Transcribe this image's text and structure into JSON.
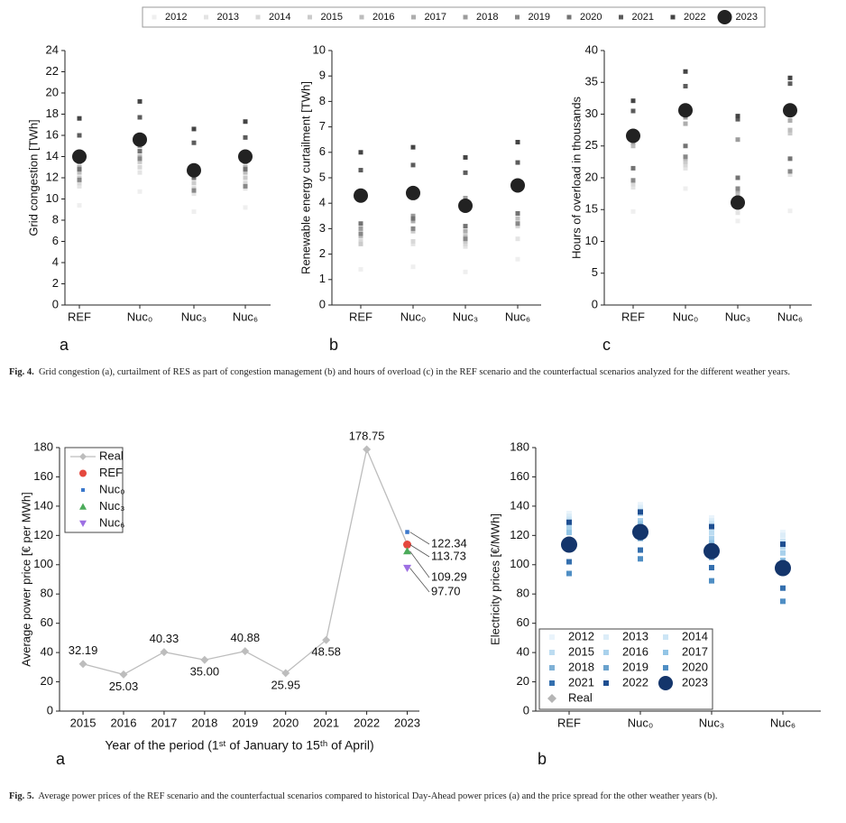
{
  "fig4_caption": {
    "label": "Fig. 4.",
    "text": "Grid congestion (a), curtailment of RES as part of congestion management (b) and hours of overload (c) in the REF scenario and the counterfactual scenarios analyzed for the different weather years."
  },
  "fig5_caption": {
    "label": "Fig. 5.",
    "text": "Average power prices of the REF scenario and the counterfactual scenarios compared to historical Day-Ahead power prices (a) and the price spread for the other weather years (b)."
  },
  "chart_data": [
    {
      "type": "scatter",
      "panel_label": "a",
      "ylabel": "Grid congestion [TWh]",
      "categories": [
        "REF",
        "Nuc₀",
        "Nuc₃",
        "Nuc₆"
      ],
      "ylim": [
        0,
        24
      ],
      "yticks": [
        0,
        2,
        4,
        6,
        8,
        10,
        12,
        14,
        16,
        18,
        20,
        22,
        24
      ],
      "legend_position": "top",
      "series": [
        {
          "name": "2012",
          "color": "#efefef",
          "marker": "square",
          "values": [
            9.4,
            10.7,
            8.8,
            9.2
          ]
        },
        {
          "name": "2013",
          "color": "#e4e4e4",
          "marker": "square",
          "values": [
            11.2,
            12.5,
            10.5,
            11.0
          ]
        },
        {
          "name": "2014",
          "color": "#d8d8d8",
          "marker": "square",
          "values": [
            11.5,
            13.0,
            11.0,
            11.5
          ]
        },
        {
          "name": "2015",
          "color": "#cbcbcb",
          "marker": "square",
          "values": [
            12.0,
            13.5,
            11.5,
            12.0
          ]
        },
        {
          "name": "2016",
          "color": "#bdbdbd",
          "marker": "square",
          "values": [
            12.5,
            14.0,
            12.0,
            12.5
          ]
        },
        {
          "name": "2017",
          "color": "#adadad",
          "marker": "square",
          "values": [
            13.0,
            14.5,
            12.5,
            13.0
          ]
        },
        {
          "name": "2018",
          "color": "#9c9c9c",
          "marker": "square",
          "values": [
            13.5,
            15.0,
            13.0,
            13.5
          ]
        },
        {
          "name": "2019",
          "color": "#888888",
          "marker": "square",
          "values": [
            11.8,
            13.8,
            10.8,
            11.2
          ]
        },
        {
          "name": "2020",
          "color": "#737373",
          "marker": "square",
          "values": [
            12.8,
            14.5,
            12.0,
            12.8
          ]
        },
        {
          "name": "2021",
          "color": "#5c5c5c",
          "marker": "square",
          "values": [
            16.0,
            17.7,
            15.3,
            15.8
          ]
        },
        {
          "name": "2022",
          "color": "#444444",
          "marker": "square",
          "values": [
            17.6,
            19.2,
            16.6,
            17.3
          ]
        },
        {
          "name": "2023",
          "color": "#222222",
          "marker": "circle",
          "values": [
            14.0,
            15.6,
            12.7,
            14.0
          ]
        }
      ]
    },
    {
      "type": "scatter",
      "panel_label": "b",
      "ylabel": "Renewable energy curtailment [TWh]",
      "categories": [
        "REF",
        "Nuc₀",
        "Nuc₃",
        "Nuc₆"
      ],
      "ylim": [
        0,
        10
      ],
      "yticks": [
        0,
        1,
        2,
        3,
        4,
        5,
        6,
        7,
        8,
        9,
        10
      ],
      "series": [
        {
          "values": [
            1.4,
            1.5,
            1.3,
            1.8
          ]
        },
        {
          "values": [
            2.4,
            2.4,
            2.3,
            2.6
          ]
        },
        {
          "values": [
            2.5,
            2.5,
            2.4,
            3.1
          ]
        },
        {
          "values": [
            2.4,
            2.9,
            2.5,
            3.2
          ]
        },
        {
          "values": [
            2.7,
            3.0,
            2.7,
            3.4
          ]
        },
        {
          "values": [
            2.8,
            3.3,
            2.9,
            3.6
          ]
        },
        {
          "values": [
            3.0,
            3.5,
            4.2,
            4.6
          ]
        },
        {
          "values": [
            2.8,
            3.0,
            2.6,
            3.2
          ]
        },
        {
          "values": [
            3.2,
            3.4,
            3.1,
            3.6
          ]
        },
        {
          "values": [
            5.3,
            5.5,
            5.2,
            5.6
          ]
        },
        {
          "values": [
            6.0,
            6.2,
            5.8,
            6.4
          ]
        },
        {
          "values": [
            4.3,
            4.4,
            3.9,
            4.7
          ]
        }
      ]
    },
    {
      "type": "scatter",
      "panel_label": "c",
      "ylabel": "Hours of overload in thousands",
      "categories": [
        "REF",
        "Nuc₀",
        "Nuc₃",
        "Nuc₆"
      ],
      "ylim": [
        0,
        40
      ],
      "yticks": [
        0,
        5,
        10,
        15,
        20,
        25,
        30,
        35,
        40
      ],
      "series": [
        {
          "values": [
            14.7,
            18.3,
            13.2,
            14.8
          ]
        },
        {
          "values": [
            18.5,
            21.5,
            14.5,
            20.5
          ]
        },
        {
          "values": [
            19.0,
            22.0,
            16.5,
            21.0
          ]
        },
        {
          "values": [
            19.5,
            22.5,
            17.0,
            27.0
          ]
        },
        {
          "values": [
            25.0,
            23.0,
            17.5,
            27.5
          ]
        },
        {
          "values": [
            25.5,
            28.5,
            18.0,
            29.0
          ]
        },
        {
          "values": [
            26.0,
            29.5,
            26.0,
            30.0
          ]
        },
        {
          "values": [
            19.6,
            23.3,
            18.3,
            21.0
          ]
        },
        {
          "values": [
            21.5,
            25.0,
            20.0,
            23.0
          ]
        },
        {
          "values": [
            30.5,
            34.4,
            29.2,
            34.8
          ]
        },
        {
          "values": [
            32.1,
            36.7,
            29.7,
            35.7
          ]
        },
        {
          "values": [
            26.6,
            30.6,
            16.1,
            30.6
          ]
        }
      ]
    },
    {
      "type": "line",
      "panel_label": "a",
      "ylabel": "Average power price [€ per MWh]",
      "xlabel": "Year of the period (1ˢᵗ of January to 15ᵗʰ of April)",
      "xlim": [
        2014.42,
        2023.3
      ],
      "xticks": [
        2015,
        2016,
        2017,
        2018,
        2019,
        2020,
        2021,
        2022,
        2023
      ],
      "ylim": [
        0,
        180
      ],
      "yticks": [
        0,
        20,
        40,
        60,
        80,
        100,
        120,
        140,
        160,
        180
      ],
      "legend_position": "upper left",
      "series": [
        {
          "name": "Real",
          "color": "#bdbdbd",
          "marker": "diamond",
          "x": [
            2015,
            2016,
            2017,
            2018,
            2019,
            2020,
            2021,
            2022,
            2023
          ],
          "values": [
            32.19,
            25.03,
            40.33,
            35,
            40.88,
            25.95,
            48.58,
            178.75,
            114
          ],
          "value_labels": [
            "32.19",
            "25.03",
            "40.33",
            "35.00",
            "40.88",
            "25.95",
            "48.58",
            "178.75",
            null
          ]
        },
        {
          "name": "REF",
          "color": "#e5483e",
          "marker": "circle",
          "x": [
            2023
          ],
          "values": [
            113.73
          ],
          "value_labels": [
            "113.73"
          ]
        },
        {
          "name": "Nuc₀",
          "color": "#3b78cc",
          "marker": "square",
          "x": [
            2023
          ],
          "values": [
            122.34
          ],
          "value_labels": [
            "122.34"
          ]
        },
        {
          "name": "Nuc₃",
          "color": "#4bab5a",
          "marker": "triangle-up",
          "x": [
            2023
          ],
          "values": [
            109.29
          ],
          "value_labels": [
            "109.29"
          ]
        },
        {
          "name": "Nuc₆",
          "color": "#9d6fe3",
          "marker": "triangle-down",
          "x": [
            2023
          ],
          "values": [
            97.7
          ],
          "value_labels": [
            "97.70"
          ]
        }
      ]
    },
    {
      "type": "scatter",
      "panel_label": "b",
      "ylabel": "Electricity prices [€/MWh]",
      "categories": [
        "REF",
        "Nuc₀",
        "Nuc₃",
        "Nuc₆"
      ],
      "ylim": [
        0,
        180
      ],
      "yticks": [
        0,
        20,
        40,
        60,
        80,
        100,
        120,
        140,
        160,
        180
      ],
      "legend_position": "lower left",
      "series": [
        {
          "name": "2012",
          "color": "#eaf4fb",
          "marker": "square",
          "values": [
            135,
            141,
            132,
            122
          ]
        },
        {
          "name": "2013",
          "color": "#dcedf8",
          "marker": "square",
          "values": [
            133,
            139,
            130,
            120
          ]
        },
        {
          "name": "2014",
          "color": "#cce5f5",
          "marker": "square",
          "values": [
            131,
            137,
            128,
            116
          ]
        },
        {
          "name": "2015",
          "color": "#bcdcf1",
          "marker": "square",
          "values": [
            127,
            135,
            122,
            112
          ]
        },
        {
          "name": "2016",
          "color": "#a9d1ec",
          "marker": "square",
          "values": [
            125,
            130,
            118,
            108
          ]
        },
        {
          "name": "2017",
          "color": "#93c5e6",
          "marker": "square",
          "values": [
            122,
            128,
            115,
            103
          ]
        },
        {
          "name": "2018",
          "color": "#7fb1d6",
          "marker": "square",
          "values": [
            115,
            120,
            107,
            100
          ]
        },
        {
          "name": "2019",
          "color": "#6aa2cd",
          "marker": "square",
          "values": [
            112,
            118,
            105,
            95
          ]
        },
        {
          "name": "2020",
          "color": "#4f8ec4",
          "marker": "square",
          "values": [
            94,
            104,
            89,
            75
          ]
        },
        {
          "name": "2021",
          "color": "#346fae",
          "marker": "square",
          "values": [
            102,
            110,
            98,
            84
          ]
        },
        {
          "name": "2022",
          "color": "#1f4f91",
          "marker": "square",
          "values": [
            129,
            136,
            126,
            114
          ]
        },
        {
          "name": "2023",
          "color": "#14356b",
          "marker": "circle",
          "values": [
            113.7,
            122.3,
            109.3,
            97.7
          ]
        },
        {
          "name": "Real",
          "color": "#b5b5b5",
          "marker": "diamond",
          "values": [
            null,
            null,
            null,
            null
          ]
        }
      ]
    }
  ]
}
